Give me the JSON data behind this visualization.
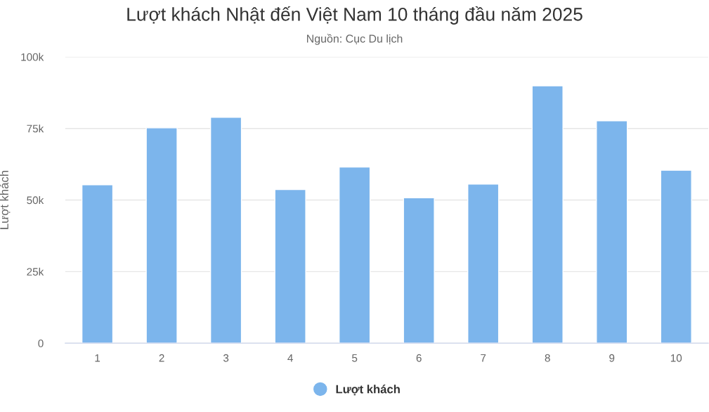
{
  "chart_data": {
    "type": "bar",
    "title": "Lượt khách Nhật đến Việt Nam 10 tháng đầu năm 2025",
    "subtitle": "Nguồn: Cục Du lịch",
    "ylabel": "Lượt khách",
    "categories": [
      "1",
      "2",
      "3",
      "4",
      "5",
      "6",
      "7",
      "8",
      "9",
      "10"
    ],
    "series": [
      {
        "name": "Lượt khách",
        "color": "#7cb5ec",
        "values": [
          55300,
          75200,
          78900,
          53700,
          61500,
          50800,
          55600,
          89900,
          77700,
          60400
        ]
      }
    ],
    "ylim": [
      0,
      100000
    ],
    "yticks": [
      {
        "value": 0,
        "label": "0"
      },
      {
        "value": 25000,
        "label": "25k"
      },
      {
        "value": 50000,
        "label": "50k"
      },
      {
        "value": 75000,
        "label": "75k"
      },
      {
        "value": 100000,
        "label": "100k"
      }
    ],
    "grid": "y",
    "legend": "bottom"
  }
}
